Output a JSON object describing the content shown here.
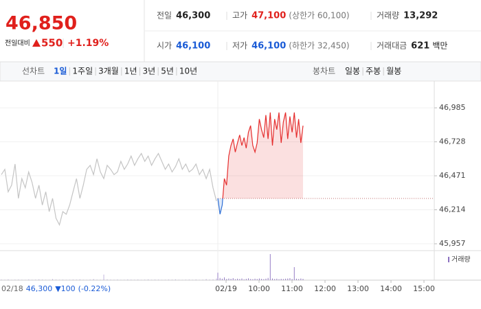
{
  "quote": {
    "price": "46,850",
    "change_label": "전일대비",
    "change": "550",
    "change_pct": "+1.19%"
  },
  "stats": [
    {
      "label": "전일",
      "value": "46,300"
    },
    {
      "label": "고가",
      "value": "47,100",
      "note": "(상한가 60,100)",
      "color": "#e0201c"
    },
    {
      "label": "거래량",
      "value": "13,292"
    },
    {
      "label": "시가",
      "value": "46,100",
      "color": "#1a5bd6"
    },
    {
      "label": "저가",
      "value": "46,100",
      "note": "(하한가 32,450)",
      "color": "#1a5bd6"
    },
    {
      "label": "거래대금",
      "value": "621",
      "unit": "백만"
    }
  ],
  "tabs": {
    "line_label": "선차트",
    "line_tabs": [
      "1일",
      "1주일",
      "3개월",
      "1년",
      "3년",
      "5년",
      "10년"
    ],
    "selected": 0,
    "candle_label": "봉차트",
    "candle_tabs": [
      "일봉",
      "주봉",
      "월봉"
    ]
  },
  "chart_data": {
    "type": "line",
    "ylim": [
      45905,
      47167
    ],
    "yticks": [
      {
        "value": 46985,
        "label": "46,985"
      },
      {
        "value": 46728,
        "label": "46,728"
      },
      {
        "value": 46471,
        "label": "46,471"
      },
      {
        "value": 46214,
        "label": "46,214"
      },
      {
        "value": 45957,
        "label": "45,957"
      }
    ],
    "baseline": 46300,
    "x_labels": [
      "02/19",
      "10:00",
      "11:00",
      "12:00",
      "13:00",
      "14:00",
      "15:00"
    ],
    "prev_summary": {
      "date": "02/18",
      "close": "46,300",
      "change": "▼100",
      "pct": "(-0.22%)"
    },
    "volume_label": "거래량",
    "volume_color": "#8a6fc0",
    "up_color": "#e52d2d",
    "down_color": "#2e6fd6",
    "prev_color": "#c4c4c4",
    "series": [
      {
        "values": [
          46480,
          46520,
          46350,
          46400,
          46560,
          46300,
          46450,
          46380,
          46500,
          46420,
          46300,
          46400,
          46250,
          46350,
          46200,
          46300,
          46150,
          46100,
          46200,
          46180,
          46250,
          46350,
          46450,
          46300,
          46400,
          46520,
          46550,
          46480,
          46600,
          46500,
          46450,
          46550,
          46520,
          46480,
          46500,
          46580,
          46520,
          46560,
          46620,
          46550,
          46600,
          46640,
          46580,
          46620,
          46550,
          46600,
          46640,
          46580,
          46520,
          46560,
          46500,
          46540,
          46600,
          46520,
          46560,
          46500,
          46520,
          46560,
          46480,
          46520,
          46450,
          46520,
          46380,
          46280
        ],
        "volume": [
          30,
          20,
          40,
          15,
          25,
          30,
          20,
          15,
          35,
          20,
          25,
          40,
          30,
          20,
          15,
          60,
          30,
          20,
          25,
          15,
          20,
          30,
          25,
          40,
          20,
          15,
          30,
          60,
          25,
          20,
          300,
          40,
          25,
          20,
          30,
          15,
          20,
          35,
          25,
          20,
          30,
          15,
          25,
          40,
          20,
          30,
          25,
          15,
          20,
          30,
          25,
          40,
          20,
          15,
          25,
          30,
          20,
          35,
          15,
          25,
          60,
          30,
          40,
          90
        ]
      },
      {
        "values": [
          46300,
          46180,
          46250,
          46450,
          46400,
          46620,
          46700,
          46750,
          46650,
          46720,
          46780,
          46700,
          46760,
          46680,
          46800,
          46850,
          46700,
          46650,
          46720,
          46900,
          46820,
          46760,
          46930,
          46750,
          46950,
          46700,
          46900,
          46820,
          46950,
          46720,
          46880,
          46950,
          46750,
          46920,
          46800,
          46950,
          46760,
          46900,
          46720,
          46850
        ],
        "volume": [
          400,
          120,
          80,
          150,
          60,
          90,
          70,
          110,
          50,
          80,
          60,
          90,
          40,
          70,
          100,
          60,
          50,
          80,
          60,
          90,
          70,
          50,
          80,
          120,
          1400,
          90,
          60,
          80,
          50,
          70,
          60,
          80,
          90,
          110,
          60,
          700,
          80,
          60,
          90,
          70
        ]
      }
    ]
  }
}
